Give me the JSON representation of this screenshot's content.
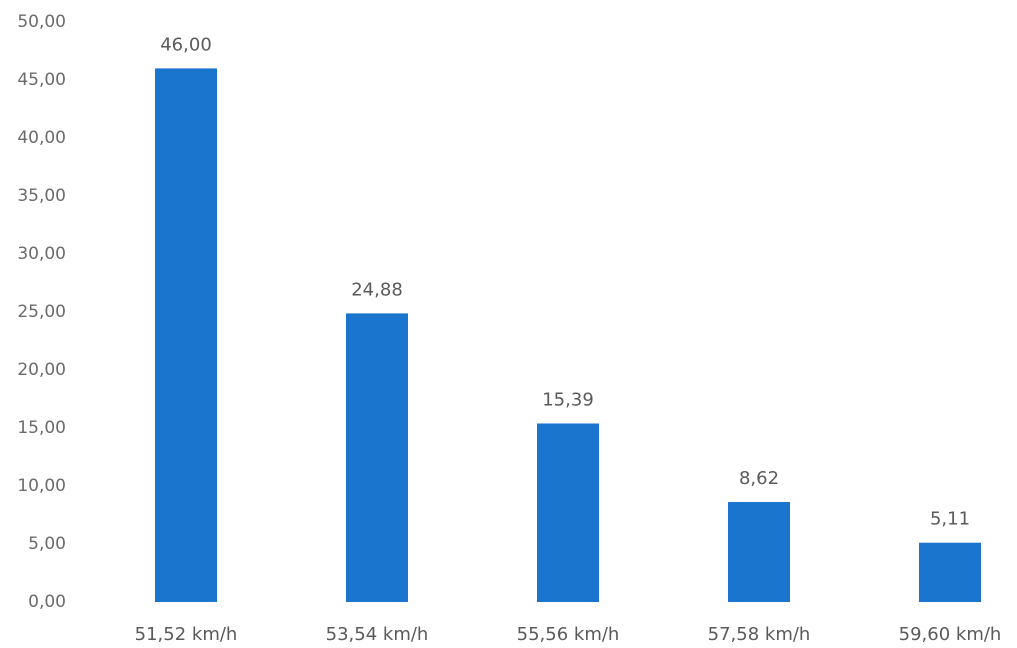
{
  "chart_data": {
    "type": "bar",
    "title": "",
    "xlabel": "",
    "ylabel": "",
    "categories": [
      "51,52 km/h",
      "53,54 km/h",
      "55,56 km/h",
      "57,58 km/h",
      "59,60 km/h"
    ],
    "values": [
      46.0,
      24.88,
      15.39,
      8.62,
      5.11
    ],
    "data_labels": [
      "46,00",
      "24,88",
      "15,39",
      "8,62",
      "5,11"
    ],
    "y_ticks": [
      "0,00",
      "5,00",
      "10,00",
      "15,00",
      "20,00",
      "25,00",
      "30,00",
      "35,00",
      "40,00",
      "45,00",
      "50,00"
    ],
    "ylim": [
      0,
      50
    ],
    "grid": false,
    "legend": "none",
    "bar_color": "#1a75cf",
    "label_color": "#5a5a5a",
    "tick_color": "#6b6b6b"
  }
}
